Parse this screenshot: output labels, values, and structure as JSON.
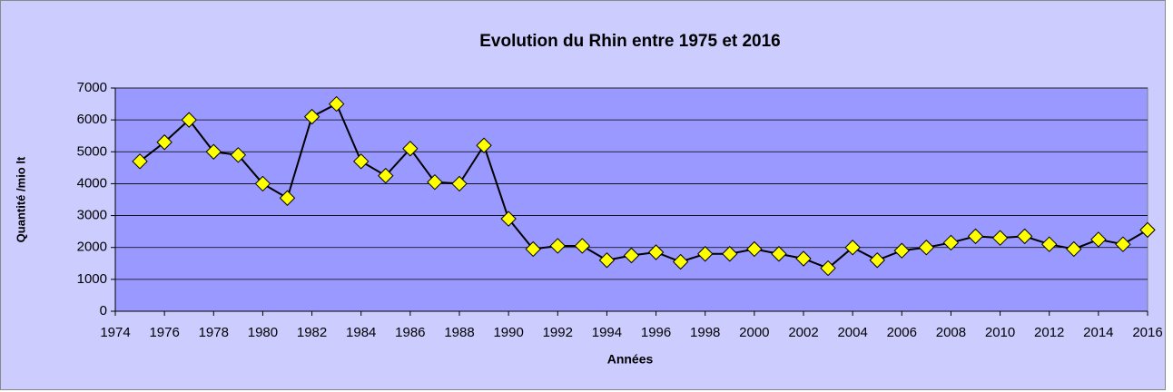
{
  "chart_data": {
    "type": "line",
    "title": "Evolution du Rhin entre 1975 et 2016",
    "x_label": "Années",
    "y_label": "Quantité /mio lt",
    "x": [
      1975,
      1976,
      1977,
      1978,
      1979,
      1980,
      1981,
      1982,
      1983,
      1984,
      1985,
      1986,
      1987,
      1988,
      1989,
      1990,
      1991,
      1992,
      1993,
      1994,
      1995,
      1996,
      1997,
      1998,
      1999,
      2000,
      2001,
      2002,
      2003,
      2004,
      2005,
      2006,
      2007,
      2008,
      2009,
      2010,
      2011,
      2012,
      2013,
      2014,
      2015,
      2016
    ],
    "series": [
      {
        "color": "#000000",
        "marker_color": "#ffff00",
        "values": [
          4700,
          5300,
          6000,
          5000,
          4900,
          4000,
          3550,
          6100,
          6500,
          4700,
          4250,
          5100,
          4050,
          4000,
          5200,
          2900,
          1950,
          2050,
          2050,
          1600,
          1750,
          1850,
          1550,
          1800,
          1800,
          1950,
          1800,
          1650,
          1350,
          2000,
          1600,
          1900,
          2000,
          2150,
          2350,
          2300,
          2350,
          2100,
          1950,
          2250,
          2100,
          2550
        ]
      }
    ],
    "xlim": [
      1974,
      2016
    ],
    "xticks": [
      1974,
      1976,
      1978,
      1980,
      1982,
      1984,
      1986,
      1988,
      1990,
      1992,
      1994,
      1996,
      1998,
      2000,
      2002,
      2004,
      2006,
      2008,
      2010,
      2012,
      2014,
      2016
    ],
    "ylim": [
      0,
      7000
    ],
    "yticks": [
      0,
      1000,
      2000,
      3000,
      4000,
      5000,
      6000,
      7000
    ],
    "grid": true,
    "background": "#ccccff",
    "plot_background": "#9999ff"
  }
}
